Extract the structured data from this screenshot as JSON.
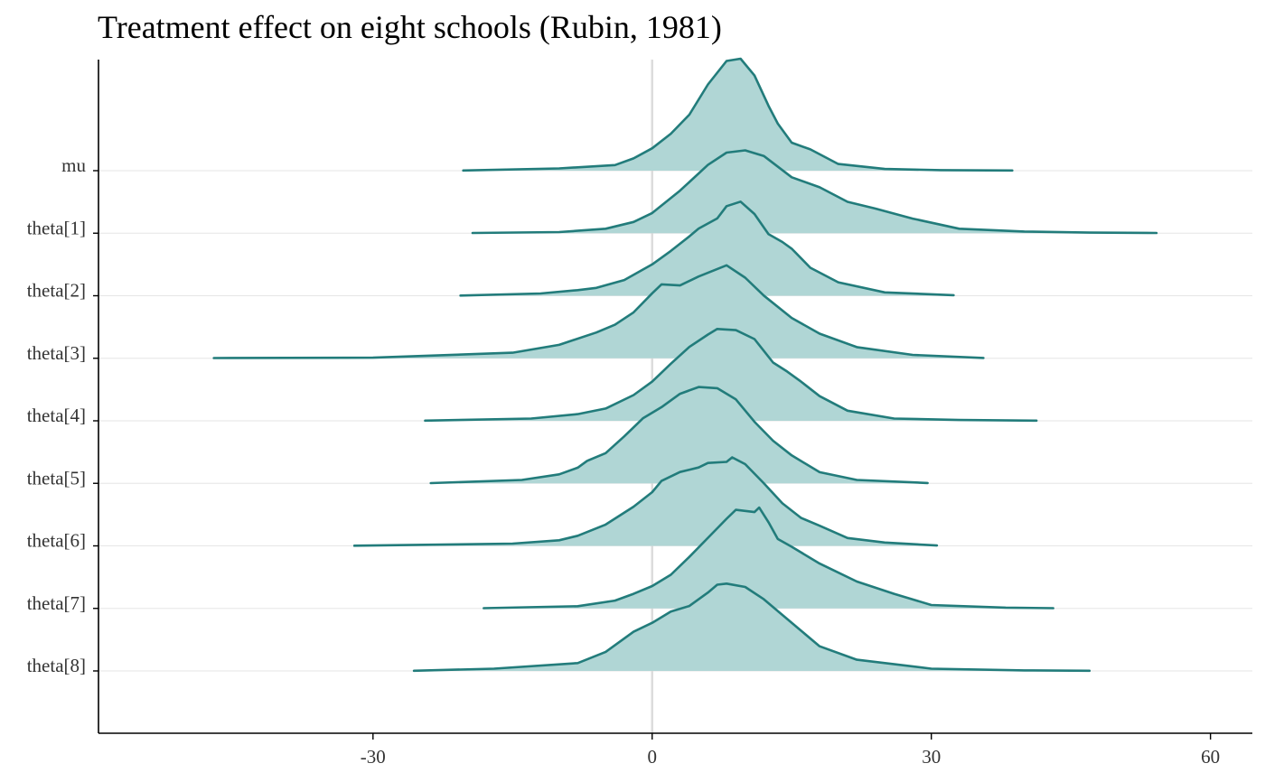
{
  "chart_data": {
    "type": "ridgeline-density",
    "title": "Treatment effect on eight schools (Rubin, 1981)",
    "xlabel": "",
    "ylabel": "",
    "xlim": [
      -59.5,
      64.5
    ],
    "x_ticks": [
      -30,
      0,
      30,
      60
    ],
    "x_tick_labels": [
      "-30",
      "0",
      "30",
      "60"
    ],
    "reference_line_x": 0,
    "grid": "horizontal baselines only",
    "colors": {
      "fill": "#b0d6d5",
      "line": "#227c7b",
      "reference_line": "#dcdcdc",
      "gridline": "#e6e6e6",
      "axis": "#000000"
    },
    "series": [
      {
        "name": "mu",
        "points": [
          [
            -20.3,
            0.002
          ],
          [
            -10,
            0.02
          ],
          [
            -4,
            0.05
          ],
          [
            -2,
            0.11
          ],
          [
            0,
            0.2
          ],
          [
            2,
            0.33
          ],
          [
            4,
            0.5
          ],
          [
            6,
            0.77
          ],
          [
            8,
            0.98
          ],
          [
            9.5,
            1.0
          ],
          [
            11,
            0.85
          ],
          [
            12.5,
            0.58
          ],
          [
            13.5,
            0.42
          ],
          [
            15,
            0.25
          ],
          [
            17,
            0.19
          ],
          [
            20,
            0.06
          ],
          [
            25,
            0.015
          ],
          [
            31,
            0.005
          ],
          [
            38.7,
            0.002
          ]
        ]
      },
      {
        "name": "theta[1]",
        "points": [
          [
            -19.3,
            0.002
          ],
          [
            -10,
            0.01
          ],
          [
            -5,
            0.04
          ],
          [
            -2,
            0.1
          ],
          [
            0,
            0.18
          ],
          [
            3,
            0.38
          ],
          [
            6,
            0.61
          ],
          [
            8,
            0.72
          ],
          [
            10,
            0.74
          ],
          [
            12,
            0.69
          ],
          [
            15,
            0.5
          ],
          [
            18,
            0.41
          ],
          [
            21,
            0.28
          ],
          [
            24,
            0.22
          ],
          [
            28,
            0.13
          ],
          [
            33,
            0.04
          ],
          [
            40,
            0.015
          ],
          [
            47,
            0.005
          ],
          [
            54.2,
            0.002
          ]
        ]
      },
      {
        "name": "theta[2]",
        "points": [
          [
            -20.6,
            0.002
          ],
          [
            -12,
            0.02
          ],
          [
            -8,
            0.05
          ],
          [
            -6,
            0.07
          ],
          [
            -3,
            0.14
          ],
          [
            0,
            0.28
          ],
          [
            2,
            0.4
          ],
          [
            4,
            0.53
          ],
          [
            5,
            0.6
          ],
          [
            7,
            0.69
          ],
          [
            8,
            0.8
          ],
          [
            9.5,
            0.84
          ],
          [
            11,
            0.73
          ],
          [
            12.5,
            0.55
          ],
          [
            14,
            0.48
          ],
          [
            15,
            0.42
          ],
          [
            17,
            0.25
          ],
          [
            20,
            0.12
          ],
          [
            25,
            0.03
          ],
          [
            32.4,
            0.005
          ]
        ]
      },
      {
        "name": "theta[3]",
        "points": [
          [
            -47.1,
            0.002
          ],
          [
            -30,
            0.005
          ],
          [
            -15,
            0.05
          ],
          [
            -10,
            0.12
          ],
          [
            -6,
            0.23
          ],
          [
            -4,
            0.3
          ],
          [
            -2,
            0.41
          ],
          [
            0,
            0.58
          ],
          [
            1,
            0.66
          ],
          [
            3,
            0.65
          ],
          [
            5,
            0.73
          ],
          [
            8,
            0.83
          ],
          [
            10,
            0.72
          ],
          [
            12,
            0.56
          ],
          [
            15,
            0.36
          ],
          [
            18,
            0.22
          ],
          [
            22,
            0.1
          ],
          [
            28,
            0.03
          ],
          [
            35.6,
            0.003
          ]
        ]
      },
      {
        "name": "theta[4]",
        "points": [
          [
            -24.4,
            0.002
          ],
          [
            -13,
            0.02
          ],
          [
            -8,
            0.06
          ],
          [
            -5,
            0.11
          ],
          [
            -2,
            0.23
          ],
          [
            0,
            0.35
          ],
          [
            2,
            0.51
          ],
          [
            4,
            0.66
          ],
          [
            6,
            0.77
          ],
          [
            7,
            0.82
          ],
          [
            9,
            0.81
          ],
          [
            11,
            0.73
          ],
          [
            13,
            0.52
          ],
          [
            14.5,
            0.44
          ],
          [
            16,
            0.35
          ],
          [
            18,
            0.22
          ],
          [
            21,
            0.09
          ],
          [
            26,
            0.02
          ],
          [
            33,
            0.007
          ],
          [
            41.3,
            0.002
          ]
        ]
      },
      {
        "name": "theta[5]",
        "points": [
          [
            -23.8,
            0.002
          ],
          [
            -14,
            0.03
          ],
          [
            -10,
            0.08
          ],
          [
            -8,
            0.14
          ],
          [
            -7,
            0.2
          ],
          [
            -5,
            0.27
          ],
          [
            -3,
            0.42
          ],
          [
            -1,
            0.58
          ],
          [
            1,
            0.68
          ],
          [
            3,
            0.8
          ],
          [
            5,
            0.86
          ],
          [
            7,
            0.85
          ],
          [
            9,
            0.75
          ],
          [
            11,
            0.55
          ],
          [
            13,
            0.38
          ],
          [
            15,
            0.25
          ],
          [
            18,
            0.1
          ],
          [
            22,
            0.03
          ],
          [
            29.6,
            0.003
          ]
        ]
      },
      {
        "name": "theta[6]",
        "points": [
          [
            -32,
            0.002
          ],
          [
            -15,
            0.02
          ],
          [
            -10,
            0.05
          ],
          [
            -8,
            0.09
          ],
          [
            -5,
            0.19
          ],
          [
            -2,
            0.35
          ],
          [
            0,
            0.48
          ],
          [
            1,
            0.58
          ],
          [
            3,
            0.66
          ],
          [
            5,
            0.7
          ],
          [
            6,
            0.74
          ],
          [
            8,
            0.75
          ],
          [
            8.6,
            0.79
          ],
          [
            10,
            0.73
          ],
          [
            12,
            0.56
          ],
          [
            14,
            0.38
          ],
          [
            16,
            0.25
          ],
          [
            18,
            0.18
          ],
          [
            21,
            0.07
          ],
          [
            25,
            0.03
          ],
          [
            30.6,
            0.003
          ]
        ]
      },
      {
        "name": "theta[7]",
        "points": [
          [
            -18.1,
            0.002
          ],
          [
            -8,
            0.02
          ],
          [
            -4,
            0.07
          ],
          [
            -2,
            0.13
          ],
          [
            0,
            0.2
          ],
          [
            2,
            0.3
          ],
          [
            4,
            0.46
          ],
          [
            6,
            0.63
          ],
          [
            8,
            0.8
          ],
          [
            9,
            0.88
          ],
          [
            11,
            0.86
          ],
          [
            11.5,
            0.9
          ],
          [
            12.5,
            0.77
          ],
          [
            13.5,
            0.62
          ],
          [
            15,
            0.55
          ],
          [
            18,
            0.4
          ],
          [
            22,
            0.24
          ],
          [
            26,
            0.13
          ],
          [
            30,
            0.03
          ],
          [
            38,
            0.007
          ],
          [
            43.1,
            0.002
          ]
        ]
      },
      {
        "name": "theta[8]",
        "points": [
          [
            -25.6,
            0.002
          ],
          [
            -17,
            0.02
          ],
          [
            -8,
            0.07
          ],
          [
            -5,
            0.17
          ],
          [
            -2,
            0.35
          ],
          [
            0,
            0.43
          ],
          [
            2,
            0.53
          ],
          [
            4,
            0.58
          ],
          [
            6,
            0.7
          ],
          [
            7,
            0.77
          ],
          [
            8,
            0.78
          ],
          [
            10,
            0.75
          ],
          [
            12,
            0.64
          ],
          [
            14,
            0.5
          ],
          [
            16,
            0.36
          ],
          [
            18,
            0.22
          ],
          [
            22,
            0.1
          ],
          [
            30,
            0.02
          ],
          [
            40,
            0.005
          ],
          [
            47,
            0.002
          ]
        ]
      }
    ]
  }
}
